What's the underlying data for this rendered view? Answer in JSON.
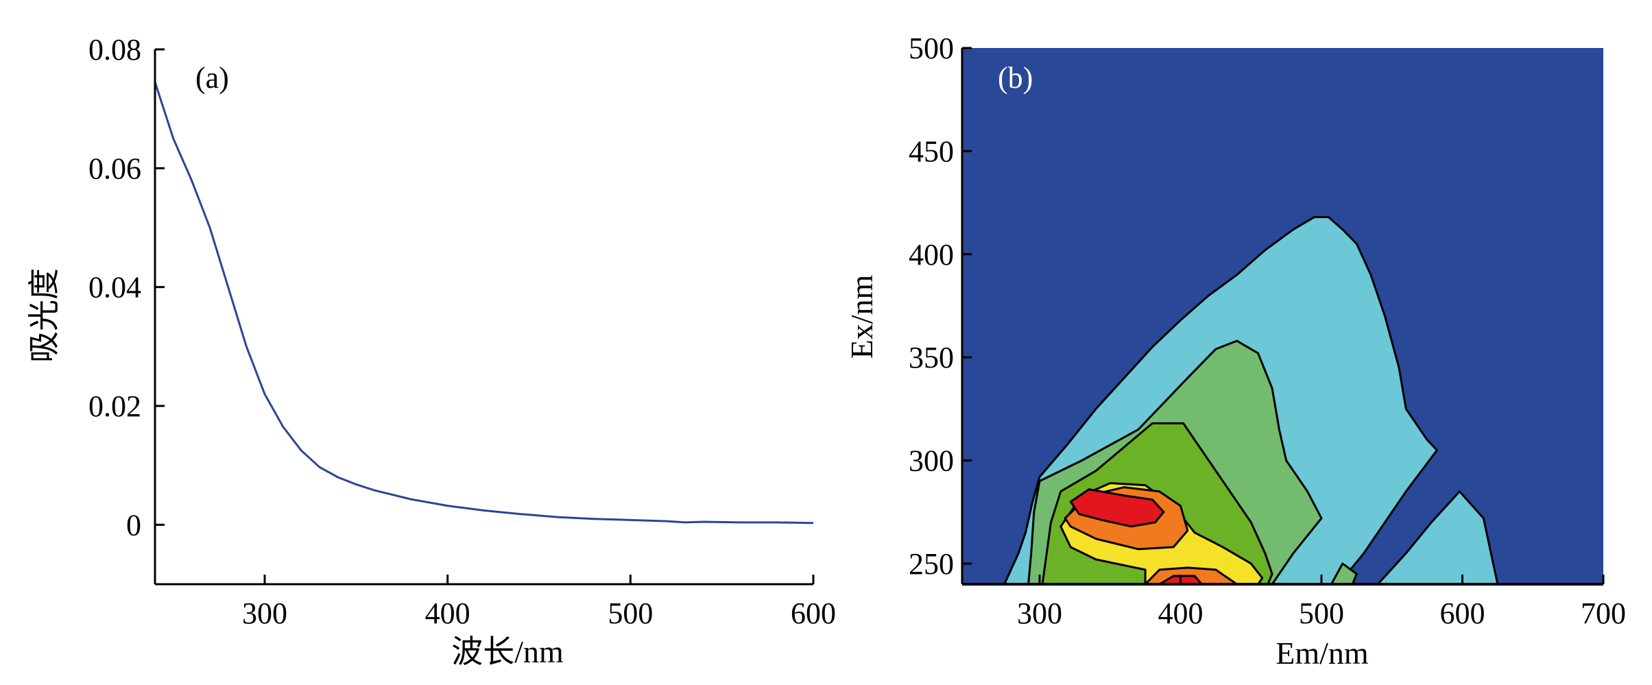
{
  "chart_data": [
    {
      "type": "line",
      "panel_label": "(a)",
      "xlabel": "波长/nm",
      "ylabel": "吸光度",
      "xlim": [
        240,
        600
      ],
      "ylim": [
        -0.01,
        0.08
      ],
      "xticks": [
        "300",
        "400",
        "500",
        "600"
      ],
      "yticks": [
        "0",
        "0.02",
        "0.04",
        "0.06",
        "0.08"
      ],
      "grid": false,
      "series": [
        {
          "color": "#2b4596",
          "x": [
            240,
            250,
            260,
            270,
            280,
            290,
            300,
            310,
            320,
            330,
            340,
            350,
            360,
            380,
            400,
            420,
            440,
            460,
            480,
            500,
            520,
            530,
            540,
            560,
            580,
            600
          ],
          "y": [
            0.0745,
            0.065,
            0.058,
            0.05,
            0.04,
            0.03,
            0.022,
            0.0165,
            0.0125,
            0.0097,
            0.008,
            0.0068,
            0.0058,
            0.0043,
            0.0032,
            0.0024,
            0.0018,
            0.0013,
            0.001,
            0.0008,
            0.0006,
            0.0004,
            0.0005,
            0.0004,
            0.0004,
            0.0003
          ]
        }
      ]
    },
    {
      "type": "heatmap",
      "panel_label": "(b)",
      "xlabel": "Em/nm",
      "ylabel": "Ex/nm",
      "xlim": [
        245,
        700
      ],
      "ylim": [
        240,
        500
      ],
      "xticks": [
        "300",
        "400",
        "500",
        "600",
        "700"
      ],
      "yticks": [
        "250",
        "300",
        "350",
        "400",
        "450",
        "500"
      ],
      "background_color": "#2a4898",
      "levels": [
        {
          "color": "#6cc7d6",
          "regions": [
            [
              [
                275,
                240
              ],
              [
                285,
                255
              ],
              [
                290,
                265
              ],
              [
                295,
                280
              ],
              [
                300,
                292
              ],
              [
                320,
                308
              ],
              [
                340,
                325
              ],
              [
                360,
                340
              ],
              [
                380,
                355
              ],
              [
                400,
                368
              ],
              [
                420,
                380
              ],
              [
                440,
                390
              ],
              [
                460,
                402
              ],
              [
                480,
                412
              ],
              [
                495,
                418
              ],
              [
                505,
                418
              ],
              [
                515,
                412
              ],
              [
                525,
                405
              ],
              [
                535,
                390
              ],
              [
                545,
                370
              ],
              [
                555,
                345
              ],
              [
                560,
                325
              ],
              [
                575,
                310
              ],
              [
                582,
                305
              ],
              [
                560,
                285
              ],
              [
                530,
                255
              ],
              [
                512,
                240
              ]
            ],
            [
              [
                540,
                240
              ],
              [
                560,
                255
              ],
              [
                578,
                270
              ],
              [
                598,
                285
              ],
              [
                615,
                272
              ],
              [
                625,
                240
              ]
            ]
          ]
        },
        {
          "color": "#73bb6e",
          "regions": [
            [
              [
                292,
                240
              ],
              [
                294,
                255
              ],
              [
                296,
                275
              ],
              [
                300,
                290
              ],
              [
                330,
                300
              ],
              [
                370,
                315
              ],
              [
                405,
                340
              ],
              [
                425,
                354
              ],
              [
                440,
                358
              ],
              [
                455,
                352
              ],
              [
                465,
                335
              ],
              [
                470,
                315
              ],
              [
                475,
                300
              ],
              [
                490,
                285
              ],
              [
                500,
                272
              ],
              [
                480,
                255
              ],
              [
                465,
                240
              ]
            ],
            [
              [
                507,
                240
              ],
              [
                515,
                250
              ],
              [
                525,
                245
              ],
              [
                522,
                240
              ]
            ]
          ]
        },
        {
          "color": "#6cb227",
          "regions": [
            [
              [
                302,
                240
              ],
              [
                305,
                255
              ],
              [
                308,
                270
              ],
              [
                315,
                285
              ],
              [
                340,
                295
              ],
              [
                380,
                318
              ],
              [
                402,
                318
              ],
              [
                415,
                305
              ],
              [
                430,
                290
              ],
              [
                450,
                270
              ],
              [
                460,
                255
              ],
              [
                465,
                245
              ],
              [
                462,
                240
              ]
            ]
          ]
        },
        {
          "color": "#f5e128",
          "regions": [
            [
              [
                315,
                268
              ],
              [
                330,
                283
              ],
              [
                350,
                289
              ],
              [
                375,
                288
              ],
              [
                395,
                278
              ],
              [
                410,
                265
              ],
              [
                430,
                258
              ],
              [
                450,
                250
              ],
              [
                458,
                243
              ],
              [
                455,
                240
              ],
              [
                375,
                240
              ],
              [
                375,
                247
              ],
              [
                340,
                252
              ],
              [
                322,
                258
              ]
            ]
          ]
        },
        {
          "color": "#f07a1d",
          "regions": [
            [
              [
                318,
                272
              ],
              [
                335,
                283
              ],
              [
                360,
                287
              ],
              [
                385,
                285
              ],
              [
                400,
                278
              ],
              [
                405,
                266
              ],
              [
                395,
                258
              ],
              [
                370,
                257
              ],
              [
                340,
                262
              ],
              [
                322,
                268
              ]
            ],
            [
              [
                375,
                240
              ],
              [
                385,
                247
              ],
              [
                405,
                248
              ],
              [
                425,
                247
              ],
              [
                440,
                240
              ]
            ]
          ]
        },
        {
          "color": "#e3151e",
          "regions": [
            [
              [
                322,
                280
              ],
              [
                335,
                286
              ],
              [
                360,
                283
              ],
              [
                380,
                281
              ],
              [
                388,
                275
              ],
              [
                382,
                270
              ],
              [
                365,
                268
              ],
              [
                345,
                271
              ],
              [
                328,
                274
              ]
            ],
            [
              [
                385,
                240
              ],
              [
                395,
                244
              ],
              [
                410,
                244
              ],
              [
                415,
                240
              ]
            ]
          ]
        }
      ]
    }
  ]
}
